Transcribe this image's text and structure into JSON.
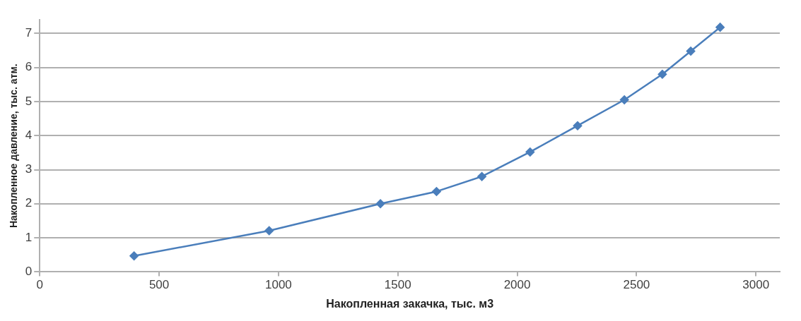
{
  "chart_data": {
    "type": "line",
    "xlabel": "Накопленная закачка, тыс. м3",
    "ylabel": "Накопленное давление, тыс. атм.",
    "xlim": [
      0,
      3100
    ],
    "xticks": [
      0,
      500,
      1000,
      1500,
      2000,
      2500,
      3000
    ],
    "ylim": [
      0,
      7.4
    ],
    "yticks": [
      0,
      1,
      2,
      3,
      4,
      5,
      6,
      7
    ],
    "grid": "y",
    "marker": "diamond",
    "line_style": "solid",
    "legend": false,
    "series": [
      {
        "color": "#4a7ebb",
        "x": [
          395,
          961,
          1427,
          1662,
          1852,
          2054,
          2253,
          2449,
          2608,
          2727,
          2850
        ],
        "values": [
          0.47,
          1.21,
          2.0,
          2.36,
          2.8,
          3.52,
          4.29,
          5.05,
          5.8,
          6.48,
          7.18
        ]
      }
    ]
  }
}
